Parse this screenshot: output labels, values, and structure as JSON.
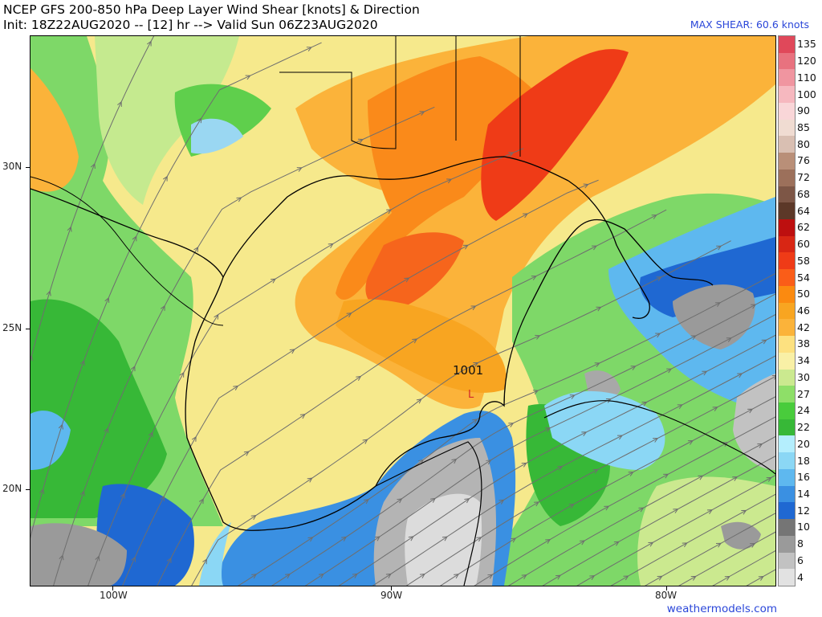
{
  "header": {
    "title_line1": "NCEP GFS 200-850 hPa Deep Layer Wind Shear [knots] & Direction",
    "title_line2": "Init: 18Z22AUG2020 -- [12] hr --> Valid Sun 06Z23AUG2020",
    "max_shear": "MAX SHEAR: 60.6 knots"
  },
  "credit": "weathermodels.com",
  "axes": {
    "lat_labels": [
      "30N",
      "25N",
      "20N"
    ],
    "lon_labels": [
      "100W",
      "90W",
      "80W"
    ]
  },
  "colors": {
    "frame": "#000000",
    "credit_text": "#2a46d9",
    "streamline": "#6e6e6e"
  },
  "pressure_center": {
    "value": "1001",
    "marker": "L"
  },
  "colorbar": {
    "labels": [
      "135",
      "120",
      "110",
      "100",
      "90",
      "85",
      "80",
      "76",
      "72",
      "68",
      "64",
      "62",
      "60",
      "58",
      "54",
      "50",
      "46",
      "42",
      "38",
      "34",
      "30",
      "27",
      "24",
      "22",
      "20",
      "18",
      "16",
      "14",
      "12",
      "10",
      "8",
      "6",
      "4"
    ],
    "colors": [
      "#e0485a",
      "#e8727f",
      "#f095a0",
      "#f6b8bf",
      "#f9d6d8",
      "#f0dcd2",
      "#d9bfb2",
      "#b98f78",
      "#9c705b",
      "#7d5646",
      "#5c3828",
      "#bd0f0f",
      "#d82614",
      "#ef3b17",
      "#fa5d18",
      "#fb8a10",
      "#f8a521",
      "#fbb33a",
      "#fde180",
      "#f9f0a6",
      "#cbe98f",
      "#8edf68",
      "#49cc3c",
      "#37b837",
      "#b4eefd",
      "#8bd7f5",
      "#5eb8ef",
      "#3a90e2",
      "#1f68d2",
      "#757575",
      "#9a9a9a",
      "#c2c2c2",
      "#e2e2e2"
    ]
  }
}
